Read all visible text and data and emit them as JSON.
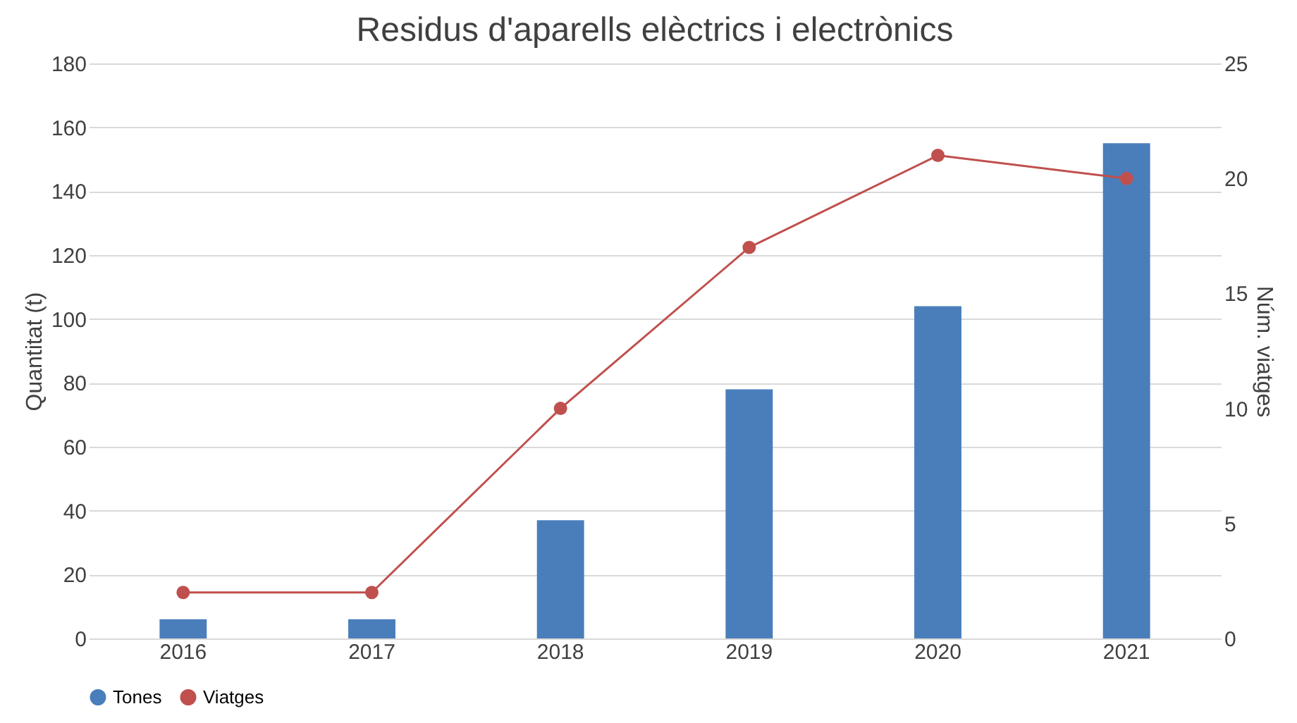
{
  "chart_data": {
    "type": "bar",
    "title": "Residus d'aparells elèctrics i electrònics",
    "categories": [
      "2016",
      "2017",
      "2018",
      "2019",
      "2020",
      "2021"
    ],
    "ylabel": "Quantitat (t)",
    "y2label": "Núm. viatges",
    "series": [
      {
        "name": "Tones",
        "color": "#4a7ebb",
        "values": [
          6,
          6,
          37,
          78,
          104,
          155
        ]
      },
      {
        "name": "Viatges",
        "type": "line",
        "axis": "y2",
        "color": "#c0504d",
        "marker": "circle",
        "values": [
          2,
          2,
          10,
          17,
          21,
          20
        ]
      }
    ],
    "ylim": [
      0,
      180
    ],
    "yticks": [
      0,
      20,
      40,
      60,
      80,
      100,
      120,
      140,
      160,
      180
    ],
    "y2lim": [
      0,
      25
    ],
    "y2ticks": [
      0,
      5,
      10,
      15,
      20,
      25
    ],
    "grid": "y",
    "legend": "bottom"
  }
}
